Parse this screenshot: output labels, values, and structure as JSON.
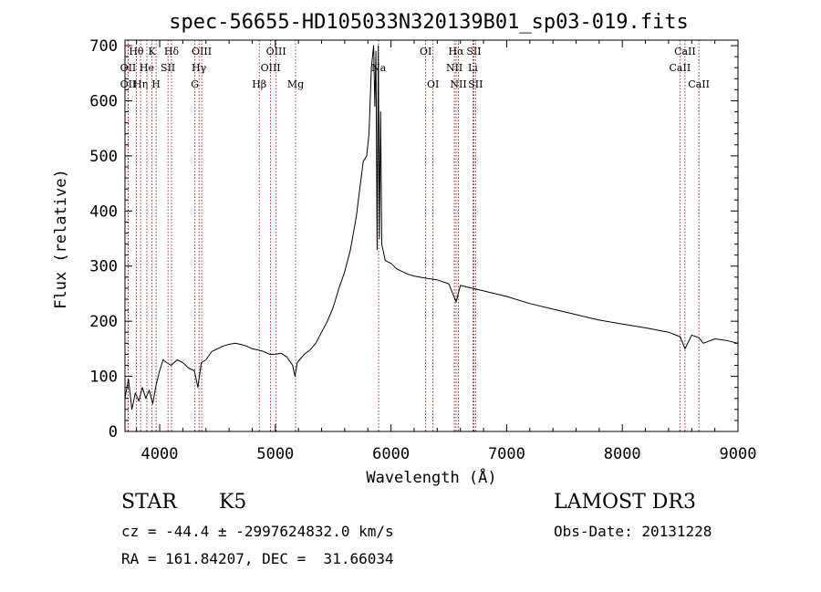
{
  "chart_data": {
    "type": "line",
    "title": "spec-56655-HD105033N320139B01_sp03-019.fits",
    "xlabel": "Wavelength (Å)",
    "ylabel": "Flux (relative)",
    "xlim": [
      3700,
      9000
    ],
    "ylim": [
      0,
      710
    ],
    "x_ticks": [
      4000,
      5000,
      6000,
      7000,
      8000,
      9000
    ],
    "y_ticks": [
      0,
      100,
      200,
      300,
      400,
      500,
      600,
      700
    ],
    "grid": false,
    "line_color": "#000000",
    "marker_color": "#8b0000",
    "series": [
      {
        "x": [
          3700,
          3730,
          3760,
          3790,
          3820,
          3850,
          3880,
          3910,
          3940,
          3970,
          4000,
          4030,
          4060,
          4100,
          4150,
          4200,
          4250,
          4300,
          4330,
          4360,
          4400,
          4450,
          4500,
          4550,
          4600,
          4650,
          4700,
          4750,
          4800,
          4850,
          4900,
          4950,
          5000,
          5050,
          5100,
          5150,
          5170,
          5190,
          5250,
          5300,
          5350,
          5400,
          5450,
          5500,
          5550,
          5600,
          5650,
          5700,
          5730,
          5760,
          5790,
          5810,
          5830,
          5850,
          5860,
          5870,
          5880,
          5890,
          5900,
          5910,
          5920,
          5950,
          6000,
          6050,
          6100,
          6150,
          6200,
          6300,
          6400,
          6500,
          6563,
          6600,
          6700,
          6800,
          7000,
          7200,
          7400,
          7600,
          7800,
          8000,
          8200,
          8400,
          8500,
          8542,
          8600,
          8662,
          8700,
          8800,
          8900,
          9000
        ],
        "y": [
          60,
          95,
          40,
          70,
          55,
          80,
          60,
          75,
          50,
          85,
          110,
          130,
          125,
          120,
          130,
          125,
          115,
          110,
          80,
          125,
          130,
          145,
          150,
          155,
          158,
          160,
          158,
          155,
          150,
          148,
          145,
          140,
          140,
          142,
          135,
          120,
          100,
          125,
          140,
          148,
          160,
          180,
          200,
          225,
          260,
          290,
          330,
          390,
          440,
          490,
          500,
          540,
          660,
          700,
          590,
          690,
          330,
          700,
          350,
          580,
          340,
          310,
          305,
          295,
          290,
          285,
          282,
          278,
          275,
          268,
          235,
          265,
          260,
          255,
          245,
          232,
          222,
          212,
          202,
          195,
          188,
          180,
          172,
          150,
          175,
          170,
          160,
          168,
          165,
          160
        ]
      }
    ],
    "line_markers": [
      {
        "label": "Hθ",
        "x": 3798,
        "row": 1
      },
      {
        "label": "OII",
        "x": 3727,
        "row": 2
      },
      {
        "label": "OII",
        "x": 3727,
        "row": 3
      },
      {
        "label": "Hη",
        "x": 3835,
        "row": 3
      },
      {
        "label": "He",
        "x": 3889,
        "row": 2
      },
      {
        "label": "K",
        "x": 3934,
        "row": 1
      },
      {
        "label": "H",
        "x": 3969,
        "row": 3
      },
      {
        "label": "SII",
        "x": 4072,
        "row": 2
      },
      {
        "label": "Hδ",
        "x": 4102,
        "row": 1
      },
      {
        "label": "OIII",
        "x": 4363,
        "row": 1
      },
      {
        "label": "Hγ",
        "x": 4340,
        "row": 2
      },
      {
        "label": "G",
        "x": 4305,
        "row": 3
      },
      {
        "label": "Hβ",
        "x": 4861,
        "row": 3
      },
      {
        "label": "OIII",
        "x": 5007,
        "row": 1
      },
      {
        "label": "OIII",
        "x": 4959,
        "row": 2
      },
      {
        "label": "Mg",
        "x": 5175,
        "row": 3
      },
      {
        "label": "Na",
        "x": 5893,
        "row": 2
      },
      {
        "label": "OI",
        "x": 6300,
        "row": 1
      },
      {
        "label": "OI",
        "x": 6363,
        "row": 3
      },
      {
        "label": "Hα",
        "x": 6563,
        "row": 1
      },
      {
        "label": "NII",
        "x": 6548,
        "row": 2
      },
      {
        "label": "NII",
        "x": 6583,
        "row": 3
      },
      {
        "label": "SII",
        "x": 6717,
        "row": 1
      },
      {
        "label": "Li",
        "x": 6708,
        "row": 2
      },
      {
        "label": "SII",
        "x": 6731,
        "row": 3
      },
      {
        "label": "CaII",
        "x": 8542,
        "row": 1
      },
      {
        "label": "CaII",
        "x": 8498,
        "row": 2
      },
      {
        "label": "CaII",
        "x": 8662,
        "row": 3
      }
    ]
  },
  "info": {
    "object_class": "STAR",
    "subclass": "K5",
    "survey": "LAMOST DR3",
    "redshift_line": "cz = -44.4 ± -2997624832.0 km/s",
    "obs_date": "Obs-Date: 20131228",
    "coords": "RA = 161.84207, DEC =  31.66034"
  }
}
